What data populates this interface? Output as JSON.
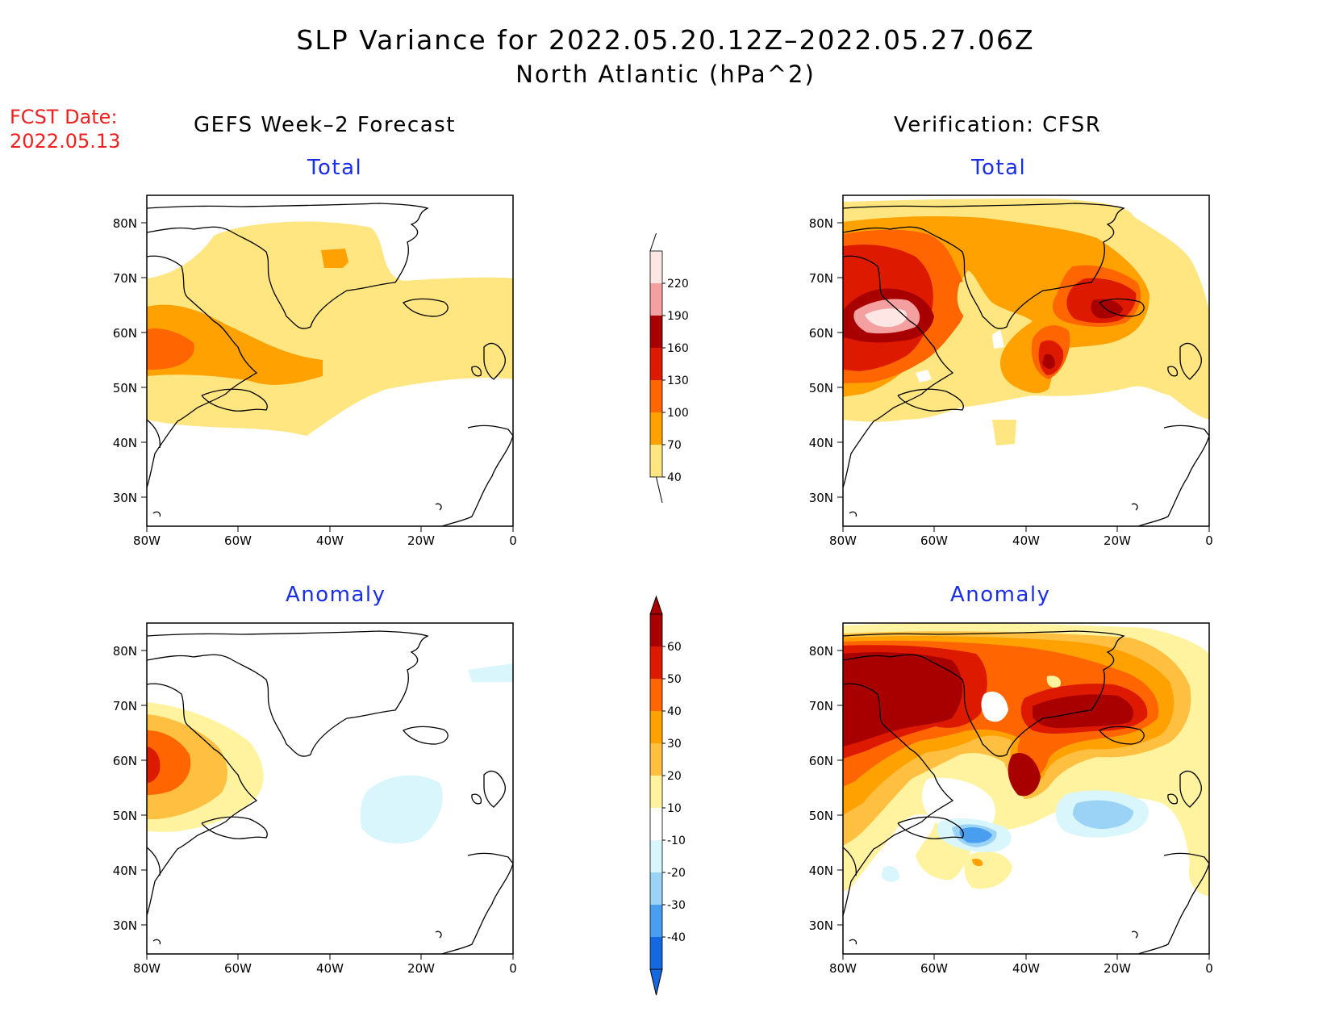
{
  "title": "SLP Variance for 2022.05.20.12Z–2022.05.27.06Z",
  "subtitle": "North Atlantic (hPa^2)",
  "fcst_date": {
    "label": "FCST Date:",
    "value": "2022.05.13"
  },
  "columns": [
    {
      "title": "GEFS Week–2 Forecast"
    },
    {
      "title": "Verification: CFSR"
    }
  ],
  "panels": [
    {
      "id": "gefs-total",
      "subtitle": "Total"
    },
    {
      "id": "cfsr-total",
      "subtitle": "Total"
    },
    {
      "id": "gefs-anomaly",
      "subtitle": "Anomaly"
    },
    {
      "id": "cfsr-anomaly",
      "subtitle": "Anomaly"
    }
  ],
  "axes": {
    "lon_labels": [
      "80W",
      "60W",
      "40W",
      "20W",
      "0"
    ],
    "lat_labels": [
      "80N",
      "70N",
      "60N",
      "50N",
      "40N",
      "30N"
    ]
  },
  "colorbars": {
    "total": {
      "labels": [
        "220",
        "190",
        "160",
        "130",
        "100",
        "70",
        "40"
      ],
      "colors": [
        "#fde6e3",
        "#f4a0a0",
        "#a80000",
        "#dd1a00",
        "#ff6500",
        "#ffa100",
        "#ffe680"
      ]
    },
    "anomaly": {
      "labels": [
        "60",
        "50",
        "40",
        "30",
        "20",
        "10",
        "-10",
        "-20",
        "-30",
        "-40"
      ],
      "colors": [
        "#a80000",
        "#dd1a00",
        "#ff6500",
        "#ffa100",
        "#ffbf40",
        "#fff3a0",
        "#ffffff",
        "#d8f6fb",
        "#9ad3f5",
        "#4a9ef0",
        "#1468e0"
      ]
    }
  }
}
